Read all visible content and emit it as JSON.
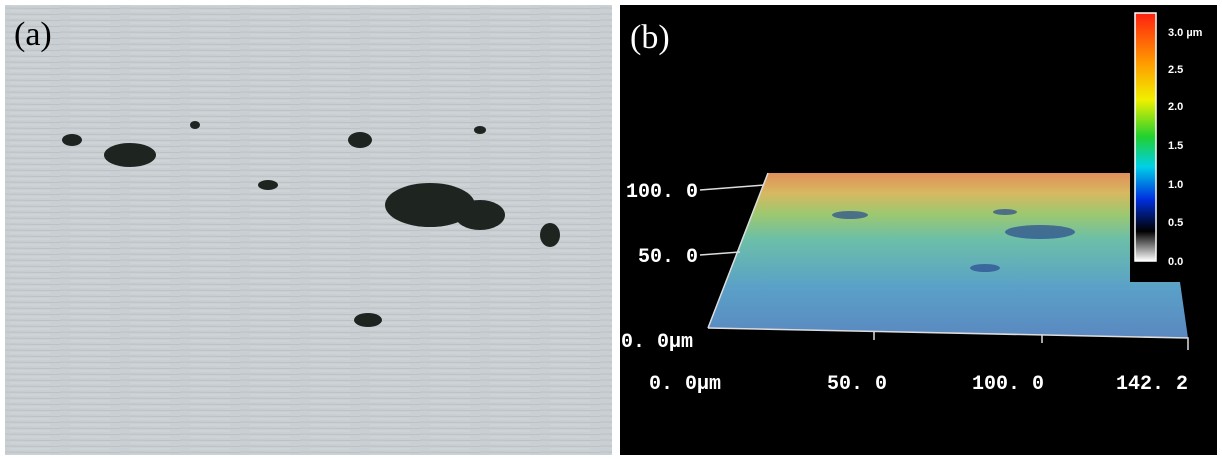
{
  "panels": [
    {
      "label": "(a)"
    },
    {
      "label": "(b)",
      "colorbar_labels": [
        "3.0 µm",
        "2.5",
        "2.0",
        "1.5",
        "1.0",
        "0.5",
        "0.0"
      ],
      "y_axis_labels": [
        "100. 0",
        "50. 0",
        "0. 0µm"
      ],
      "x_axis_labels": [
        "0. 0µm",
        "50. 0",
        "100. 0",
        "142. 2"
      ]
    }
  ]
}
